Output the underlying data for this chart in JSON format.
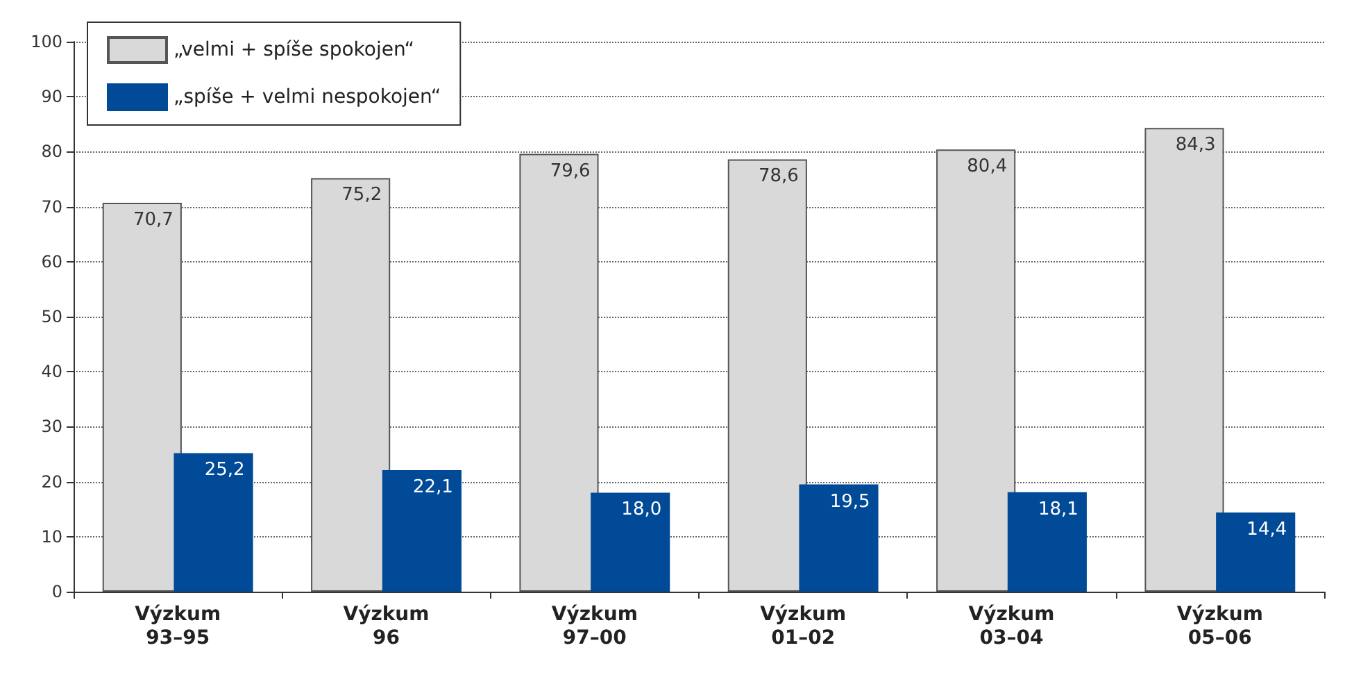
{
  "chart_data": {
    "type": "bar",
    "categories": [
      "Výzkum\n93–95",
      "Výzkum\n96",
      "Výzkum\n97–00",
      "Výzkum\n01–02",
      "Výzkum\n03–04",
      "Výzkum\n05–06"
    ],
    "series": [
      {
        "name": "„velmi + spíše spokojen“",
        "color": "#d9d9d9",
        "values": [
          70.7,
          75.2,
          79.6,
          78.6,
          80.4,
          84.3
        ],
        "value_labels": [
          "70,7",
          "75,2",
          "79,6",
          "78,6",
          "80,4",
          "84,3"
        ]
      },
      {
        "name": "„spíše + velmi nespokojen“",
        "color": "#004a97",
        "values": [
          25.2,
          22.1,
          18.0,
          19.5,
          18.1,
          14.4
        ],
        "value_labels": [
          "25,2",
          "22,1",
          "18,0",
          "19,5",
          "18,1",
          "14,4"
        ]
      }
    ],
    "ylim": [
      0,
      100
    ],
    "yticks": [
      0,
      10,
      20,
      30,
      40,
      50,
      60,
      70,
      80,
      90,
      100
    ],
    "grid": "y",
    "legend": "top left"
  }
}
